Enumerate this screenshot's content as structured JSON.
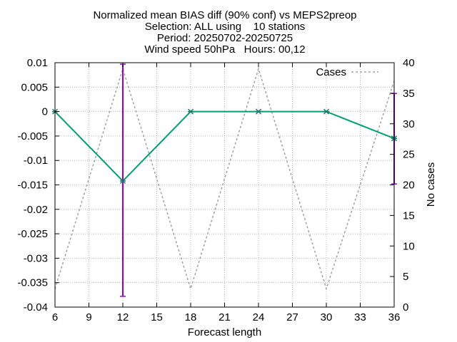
{
  "chart_data": {
    "type": "line",
    "title_lines": [
      "Normalized mean BIAS diff (90% conf) vs MEPS2preop",
      "Selection: ALL using    10 stations",
      "Period: 20250702-20250725",
      "Wind speed 50hPa   Hours: 00,12"
    ],
    "xlabel": "Forecast length",
    "ylabel": "",
    "y2label": "No cases",
    "x": [
      6,
      12,
      18,
      24,
      30,
      36
    ],
    "xlim": [
      6,
      36
    ],
    "xticks": [
      6,
      9,
      12,
      15,
      18,
      21,
      24,
      27,
      30,
      33,
      36
    ],
    "ylim": [
      -0.04,
      0.01
    ],
    "yticks": [
      0.01,
      0.005,
      0,
      -0.005,
      -0.01,
      -0.015,
      -0.02,
      -0.025,
      -0.03,
      -0.035,
      -0.04
    ],
    "ytick_labels": [
      "0.01",
      "0.005",
      "0",
      "-0.005",
      "-0.01",
      "-0.015",
      "-0.02",
      "-0.025",
      "-0.03",
      "-0.035",
      "-0.04"
    ],
    "y2lim": [
      0,
      40
    ],
    "y2ticks": [
      0,
      5,
      10,
      15,
      20,
      25,
      30,
      35,
      40
    ],
    "grid": true,
    "legend_position": "top-right",
    "series": [
      {
        "role": "bias",
        "axis": "y",
        "color": "#009e73",
        "values": [
          0,
          -0.0142,
          0,
          0,
          0,
          -0.0055
        ],
        "err_low": [
          0,
          -0.0378,
          0,
          0,
          0,
          -0.0148
        ],
        "err_high": [
          0,
          0.0097,
          0,
          0,
          0,
          0.0037
        ],
        "errcolor": "#9400d3"
      },
      {
        "name": "Cases",
        "axis": "y2",
        "color": "#a0a0a0",
        "dashed": true,
        "values": [
          3,
          39,
          3,
          39,
          3,
          37
        ]
      }
    ]
  }
}
